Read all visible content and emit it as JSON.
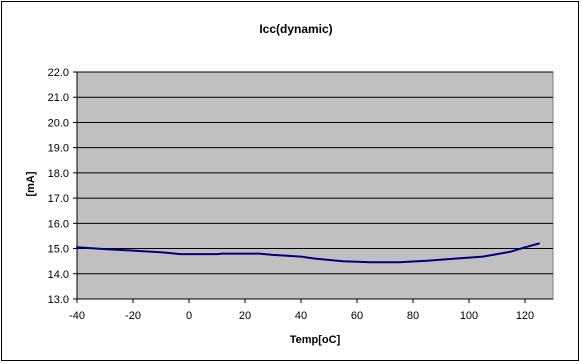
{
  "chart_data": {
    "type": "line",
    "title": "Icc(dynamic)",
    "xlabel": "Temp[oC]",
    "ylabel": "[mA]",
    "xlim": [
      -40,
      130
    ],
    "ylim": [
      13.0,
      22.0
    ],
    "x_ticks": [
      -40,
      -20,
      0,
      20,
      40,
      60,
      80,
      100,
      120
    ],
    "x_tick_labels": [
      "-40",
      "-20",
      "0",
      "20",
      "40",
      "60",
      "80",
      "100",
      "120"
    ],
    "y_ticks": [
      13.0,
      14.0,
      15.0,
      16.0,
      17.0,
      18.0,
      19.0,
      20.0,
      21.0,
      22.0
    ],
    "y_tick_labels": [
      "13.0",
      "14.0",
      "15.0",
      "16.0",
      "17.0",
      "18.0",
      "19.0",
      "20.0",
      "21.0",
      "22.0"
    ],
    "grid": "horizontal",
    "legend": "none",
    "plot_background": "#c0c0c0",
    "line_color": "#000080",
    "series": [
      {
        "x": [
          -40,
          -30,
          -20,
          -10,
          -3,
          5,
          10,
          12,
          20,
          25,
          30,
          40,
          45,
          55,
          65,
          75,
          85,
          95,
          105,
          110,
          115,
          120,
          125
        ],
        "y": [
          15.05,
          14.98,
          14.92,
          14.85,
          14.78,
          14.78,
          14.78,
          14.8,
          14.8,
          14.8,
          14.75,
          14.68,
          14.6,
          14.5,
          14.46,
          14.46,
          14.52,
          14.6,
          14.68,
          14.78,
          14.88,
          15.05,
          15.2
        ]
      }
    ]
  }
}
